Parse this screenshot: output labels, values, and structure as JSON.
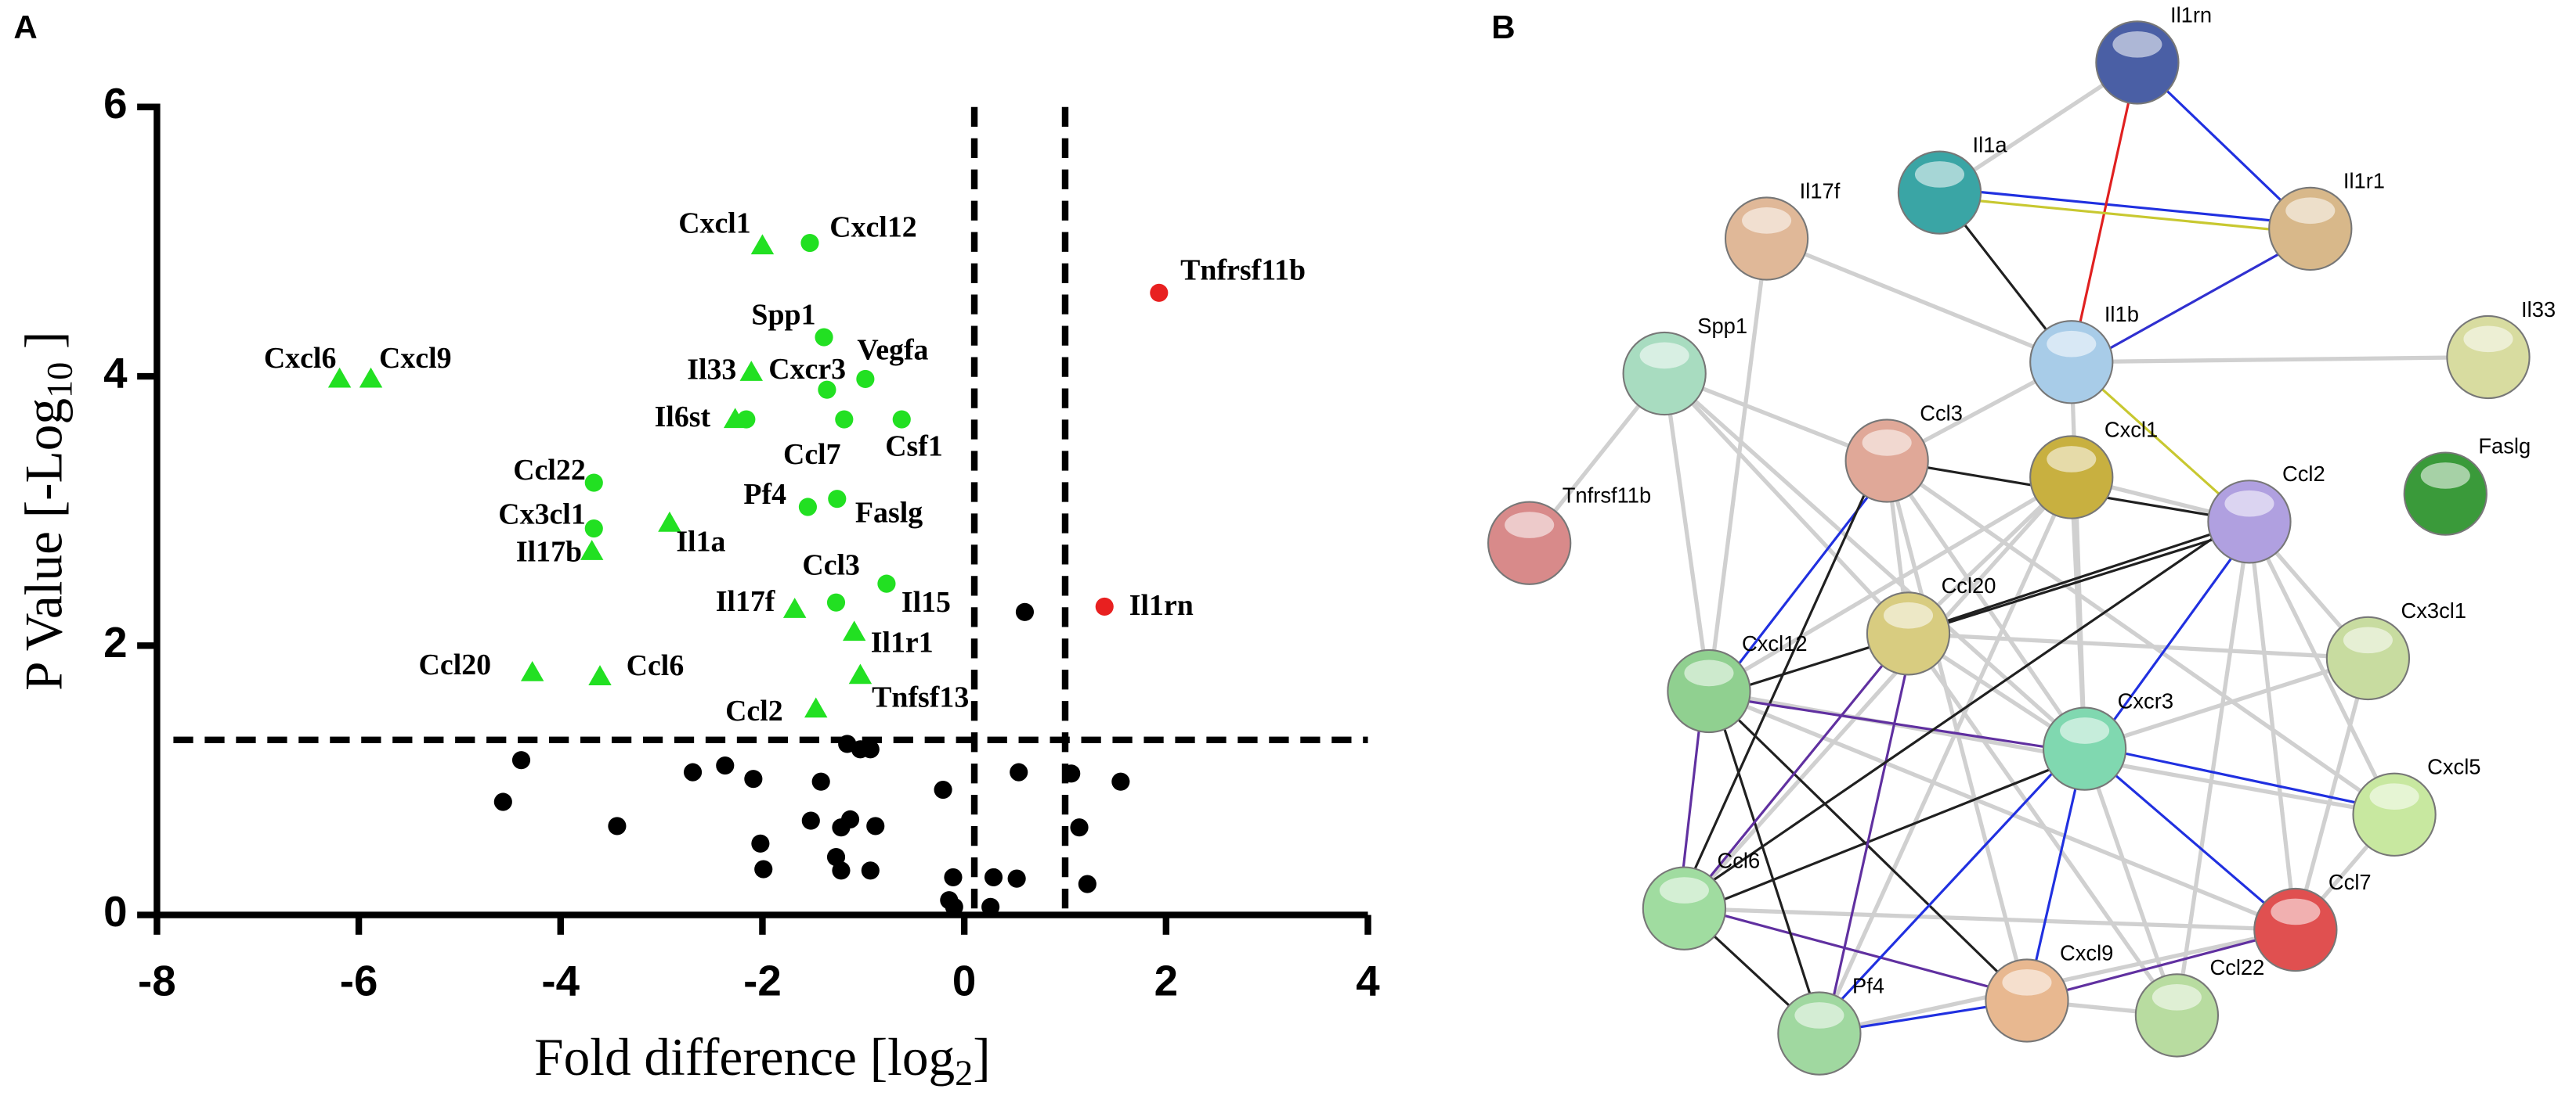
{
  "panel_labels": {
    "a": "A",
    "b": "B"
  },
  "chart_data": {
    "type": "scatter",
    "x_label": {
      "text": "Fold difference [log",
      "sub": "2",
      "end": "]"
    },
    "y_label": {
      "text": "P Value [-Log",
      "sub": "10",
      "end": " ]"
    },
    "xlim": [
      -8,
      4
    ],
    "ylim": [
      0,
      6
    ],
    "xticks": [
      -8,
      -6,
      -4,
      -2,
      0,
      2,
      4
    ],
    "yticks": [
      0,
      2,
      4,
      6
    ],
    "reference_lines": {
      "y": [
        1.3
      ],
      "x": [
        0.1,
        1
      ]
    },
    "series": [
      {
        "color": "#22e022",
        "marker": "triangle",
        "labels": [
          "Cxcl1",
          "Cxcl6",
          "Cxcl9",
          "Il33",
          "Il6st",
          "Il1a",
          "Il17b",
          "Ccl20",
          "Ccl6",
          "Il17f",
          "Il1r1",
          "Tnfsf13",
          "Ccl2"
        ],
        "x": [
          -2.0,
          -6.19,
          -5.88,
          -2.11,
          -2.27,
          -2.92,
          -3.69,
          -4.28,
          -3.61,
          -1.68,
          -1.09,
          -1.03,
          -1.47
        ],
        "values": [
          4.97,
          3.98,
          3.98,
          4.03,
          3.68,
          2.91,
          2.7,
          1.8,
          1.77,
          2.27,
          2.1,
          1.78,
          1.53
        ]
      },
      {
        "color": "#22e022",
        "marker": "circle",
        "labels": [
          "Cxcl12",
          "Spp1",
          "Cxcr3",
          "Vegfa",
          "Ccl7",
          "Csf1",
          "Ccl22",
          "Cx3cl1",
          "Pf4",
          "Faslg",
          "Ccl3",
          "Il15",
          null
        ],
        "x": [
          -1.53,
          -1.39,
          -1.36,
          -0.98,
          -1.19,
          -0.62,
          -3.67,
          -3.67,
          -1.55,
          -1.26,
          -1.27,
          -0.77,
          -2.16
        ],
        "values": [
          4.99,
          4.29,
          3.9,
          3.98,
          3.68,
          3.68,
          3.21,
          2.87,
          3.03,
          3.09,
          2.32,
          2.46,
          3.68
        ]
      },
      {
        "color": "#e82020",
        "marker": "circle",
        "labels": [
          "Tnfrsf11b",
          "Il1rn"
        ],
        "x": [
          1.93,
          1.39
        ],
        "values": [
          4.62,
          2.29
        ]
      },
      {
        "color": "#000000",
        "marker": "circle",
        "x": [
          -4.39,
          -4.57,
          -3.44,
          -2.69,
          -2.37,
          -2.09,
          -1.42,
          -1.16,
          -1.03,
          -0.93,
          -2.02,
          -1.99,
          -1.52,
          -1.22,
          -1.13,
          -0.88,
          -1.27,
          -1.22,
          -0.93,
          -0.21,
          -0.11,
          -0.15,
          -0.1,
          0.29,
          0.52,
          0.26,
          0.54,
          1.06,
          1.14,
          1.22,
          1.55,
          0.6
        ],
        "values": [
          1.15,
          0.84,
          0.66,
          1.06,
          1.11,
          1.01,
          0.99,
          1.27,
          1.23,
          1.23,
          0.53,
          0.34,
          0.7,
          0.65,
          0.71,
          0.66,
          0.43,
          0.33,
          0.33,
          0.93,
          0.28,
          0.11,
          0.06,
          0.28,
          0.27,
          0.06,
          1.06,
          1.05,
          0.65,
          0.23,
          0.99,
          2.25
        ]
      }
    ]
  },
  "network": {
    "nodes": [
      "Il1rn",
      "Il1a",
      "Il1r1",
      "Il17f",
      "Il1b",
      "Il33",
      "Spp1",
      "Ccl3",
      "Cxcl1",
      "Ccl2",
      "Faslg",
      "Tnfrsf11b",
      "Ccl20",
      "Cx3cl1",
      "Cxcl12",
      "Cxcr3",
      "Cxcl5",
      "Ccl6",
      "Ccl7",
      "Ccl22",
      "Cxcl9",
      "Pf4"
    ]
  }
}
